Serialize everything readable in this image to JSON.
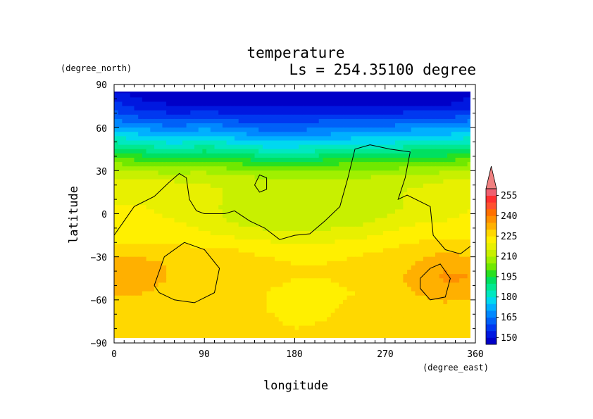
{
  "chart_data": {
    "type": "heatmap",
    "title": "temperature",
    "subtitle": "Ls = 254.35100 degree",
    "xlabel": "longitude",
    "ylabel": "latitude",
    "xunit": "(degree_east)",
    "yunit": "(degree_north)",
    "xlim": [
      0,
      360
    ],
    "ylim": [
      -90,
      90
    ],
    "xticks": [
      "0",
      "90",
      "180",
      "270",
      "360"
    ],
    "yticks": [
      "90",
      "60",
      "30",
      "0",
      "−30",
      "−60",
      "−90"
    ],
    "colorbar": {
      "labels": [
        "255",
        "240",
        "225",
        "210",
        "195",
        "180",
        "165",
        "150"
      ],
      "levels": [
        145,
        150,
        155,
        160,
        165,
        170,
        175,
        180,
        185,
        190,
        195,
        200,
        205,
        210,
        215,
        220,
        225,
        230,
        235,
        240,
        245,
        250,
        255,
        260
      ],
      "colors": [
        "#0000c8",
        "#0018e0",
        "#0038f0",
        "#0060f8",
        "#0088ff",
        "#00b0ff",
        "#00d8f0",
        "#00e8c0",
        "#00e890",
        "#00e060",
        "#28e020",
        "#70e800",
        "#a0f000",
        "#c8f000",
        "#e8f000",
        "#fff000",
        "#ffd800",
        "#ffb000",
        "#ff9000",
        "#ff7000",
        "#ff5030",
        "#ff3030",
        "#f06070"
      ],
      "extend_color": "#f08080"
    },
    "latitudes": [
      85,
      75,
      65,
      55,
      45,
      35,
      25,
      15,
      5,
      -5,
      -15,
      -25,
      -35,
      -45,
      -55,
      -65,
      -75,
      -85
    ],
    "longitudes": [
      0,
      30,
      60,
      90,
      120,
      150,
      180,
      210,
      240,
      270,
      300,
      330,
      360
    ],
    "values": [
      [
        150,
        147,
        147,
        147,
        147,
        147,
        147,
        147,
        147,
        147,
        147,
        147,
        150
      ],
      [
        157,
        152,
        150,
        150,
        150,
        150,
        150,
        150,
        150,
        150,
        150,
        150,
        152
      ],
      [
        165,
        162,
        160,
        162,
        160,
        157,
        157,
        160,
        160,
        160,
        162,
        162,
        165
      ],
      [
        178,
        175,
        172,
        175,
        172,
        168,
        168,
        170,
        172,
        172,
        175,
        175,
        178
      ],
      [
        192,
        188,
        185,
        188,
        185,
        182,
        182,
        183,
        185,
        185,
        188,
        188,
        192
      ],
      [
        205,
        203,
        202,
        203,
        200,
        198,
        198,
        199,
        200,
        200,
        203,
        203,
        205
      ],
      [
        215,
        214,
        214,
        214,
        212,
        210,
        210,
        210,
        210,
        211,
        213,
        214,
        215
      ],
      [
        218,
        218,
        218,
        217,
        214,
        212,
        211,
        211,
        212,
        214,
        216,
        218,
        218
      ],
      [
        220,
        220,
        219,
        217,
        213,
        211,
        210,
        210,
        211,
        213,
        216,
        218,
        220
      ],
      [
        221,
        221,
        220,
        218,
        214,
        212,
        211,
        212,
        213,
        216,
        219,
        220,
        221
      ],
      [
        223,
        223,
        223,
        221,
        219,
        217,
        216,
        217,
        218,
        221,
        223,
        224,
        223
      ],
      [
        227,
        227,
        226,
        226,
        225,
        224,
        223,
        223,
        224,
        225,
        227,
        229,
        227
      ],
      [
        233,
        232,
        229,
        228,
        227,
        226,
        225,
        225,
        226,
        227,
        230,
        234,
        233
      ],
      [
        235,
        233,
        229,
        228,
        227,
        226,
        225,
        225,
        226,
        227,
        232,
        236,
        235
      ],
      [
        231,
        230,
        228,
        227,
        226,
        225,
        224,
        224,
        225,
        227,
        230,
        232,
        231
      ],
      [
        228,
        228,
        227,
        226,
        226,
        225,
        223,
        224,
        226,
        227,
        228,
        229,
        228
      ],
      [
        228,
        228,
        228,
        227,
        227,
        226,
        224,
        225,
        227,
        228,
        228,
        228,
        228
      ],
      [
        228,
        228,
        228,
        228,
        228,
        227,
        226,
        227,
        228,
        228,
        228,
        228,
        228
      ]
    ],
    "contour_level": 225,
    "contours": [
      [
        [
          0,
          -15
        ],
        [
          10,
          -5
        ],
        [
          20,
          5
        ],
        [
          40,
          12
        ],
        [
          55,
          22
        ],
        [
          65,
          28
        ],
        [
          72,
          25
        ],
        [
          75,
          10
        ],
        [
          82,
          2
        ],
        [
          90,
          0
        ],
        [
          110,
          0
        ],
        [
          120,
          2
        ],
        [
          135,
          -5
        ],
        [
          150,
          -10
        ],
        [
          165,
          -18
        ],
        [
          180,
          -15
        ],
        [
          195,
          -14
        ],
        [
          210,
          -5
        ],
        [
          225,
          5
        ],
        [
          233,
          25
        ],
        [
          240,
          45
        ],
        [
          255,
          48
        ],
        [
          275,
          45
        ],
        [
          295,
          43
        ],
        [
          290,
          25
        ],
        [
          283,
          10
        ],
        [
          292,
          13
        ],
        [
          315,
          5
        ],
        [
          318,
          -15
        ],
        [
          330,
          -25
        ],
        [
          345,
          -28
        ],
        [
          360,
          -20
        ]
      ],
      [
        [
          140,
          20
        ],
        [
          145,
          27
        ],
        [
          152,
          25
        ],
        [
          152,
          17
        ],
        [
          145,
          15
        ],
        [
          140,
          20
        ]
      ],
      [
        [
          40,
          -50
        ],
        [
          50,
          -30
        ],
        [
          70,
          -20
        ],
        [
          90,
          -25
        ],
        [
          105,
          -38
        ],
        [
          100,
          -55
        ],
        [
          80,
          -62
        ],
        [
          60,
          -60
        ],
        [
          45,
          -55
        ],
        [
          40,
          -50
        ]
      ],
      [
        [
          305,
          -45
        ],
        [
          315,
          -38
        ],
        [
          325,
          -35
        ],
        [
          335,
          -45
        ],
        [
          330,
          -58
        ],
        [
          315,
          -60
        ],
        [
          305,
          -52
        ],
        [
          305,
          -45
        ]
      ]
    ]
  }
}
